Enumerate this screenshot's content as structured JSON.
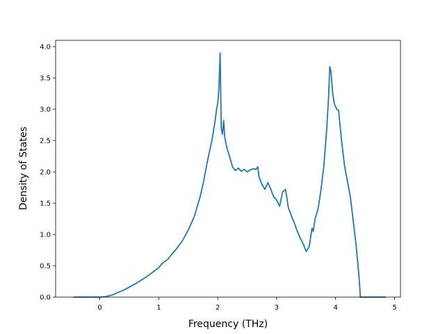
{
  "chart_data": {
    "type": "line",
    "title": "",
    "xlabel": "Frequency (THz)",
    "ylabel": "Density of States",
    "xlim": [
      -0.75,
      5.1
    ],
    "ylim": [
      0.0,
      4.1
    ],
    "xticks": [
      0,
      1,
      2,
      3,
      4,
      5
    ],
    "xtick_labels": [
      "0",
      "1",
      "2",
      "3",
      "4",
      "5"
    ],
    "yticks": [
      0.0,
      0.5,
      1.0,
      1.5,
      2.0,
      2.5,
      3.0,
      3.5,
      4.0
    ],
    "ytick_labels": [
      "0.0",
      "0.5",
      "1.0",
      "1.5",
      "2.0",
      "2.5",
      "3.0",
      "3.5",
      "4.0"
    ],
    "grid": false,
    "legend": "none",
    "colors": {
      "line": "#1f77b4",
      "axes": "#000000",
      "background": "#ffffff"
    },
    "series": [
      {
        "x": [
          -0.45,
          -0.3,
          -0.15,
          0.0,
          0.1,
          0.2,
          0.3,
          0.4,
          0.5,
          0.6,
          0.7,
          0.8,
          0.9,
          1.0,
          1.05,
          1.1,
          1.15,
          1.2,
          1.3,
          1.4,
          1.5,
          1.6,
          1.7,
          1.75,
          1.8,
          1.85,
          1.9,
          1.95,
          1.98,
          2.0,
          2.01,
          2.02,
          2.04,
          2.06,
          2.08,
          2.1,
          2.12,
          2.15,
          2.2,
          2.25,
          2.3,
          2.35,
          2.4,
          2.45,
          2.5,
          2.55,
          2.6,
          2.65,
          2.68,
          2.7,
          2.75,
          2.8,
          2.85,
          2.9,
          2.95,
          3.0,
          3.05,
          3.1,
          3.15,
          3.2,
          3.25,
          3.3,
          3.35,
          3.4,
          3.45,
          3.5,
          3.55,
          3.6,
          3.62,
          3.65,
          3.7,
          3.75,
          3.8,
          3.85,
          3.88,
          3.9,
          3.92,
          3.95,
          3.98,
          4.02,
          4.05,
          4.1,
          4.15,
          4.2,
          4.25,
          4.3,
          4.35,
          4.4,
          4.42,
          4.45,
          4.6,
          4.85
        ],
        "y": [
          0.0,
          0.0,
          0.0,
          0.0,
          0.01,
          0.03,
          0.07,
          0.11,
          0.16,
          0.21,
          0.27,
          0.33,
          0.4,
          0.47,
          0.53,
          0.57,
          0.6,
          0.66,
          0.77,
          0.9,
          1.07,
          1.28,
          1.6,
          1.8,
          2.05,
          2.28,
          2.5,
          2.78,
          3.0,
          3.1,
          3.2,
          3.35,
          3.9,
          2.7,
          2.6,
          2.82,
          2.55,
          2.4,
          2.25,
          2.08,
          2.02,
          2.06,
          2.01,
          2.04,
          2.0,
          2.03,
          2.05,
          2.04,
          2.08,
          1.92,
          1.8,
          1.72,
          1.83,
          1.72,
          1.6,
          1.55,
          1.45,
          1.68,
          1.72,
          1.42,
          1.3,
          1.18,
          1.05,
          0.94,
          0.85,
          0.73,
          0.8,
          1.1,
          1.05,
          1.25,
          1.4,
          1.7,
          2.1,
          2.7,
          3.2,
          3.68,
          3.6,
          3.25,
          3.08,
          3.0,
          2.98,
          2.5,
          2.1,
          1.85,
          1.6,
          1.2,
          0.8,
          0.3,
          0.0,
          0.0,
          0.0,
          0.0
        ]
      }
    ]
  }
}
